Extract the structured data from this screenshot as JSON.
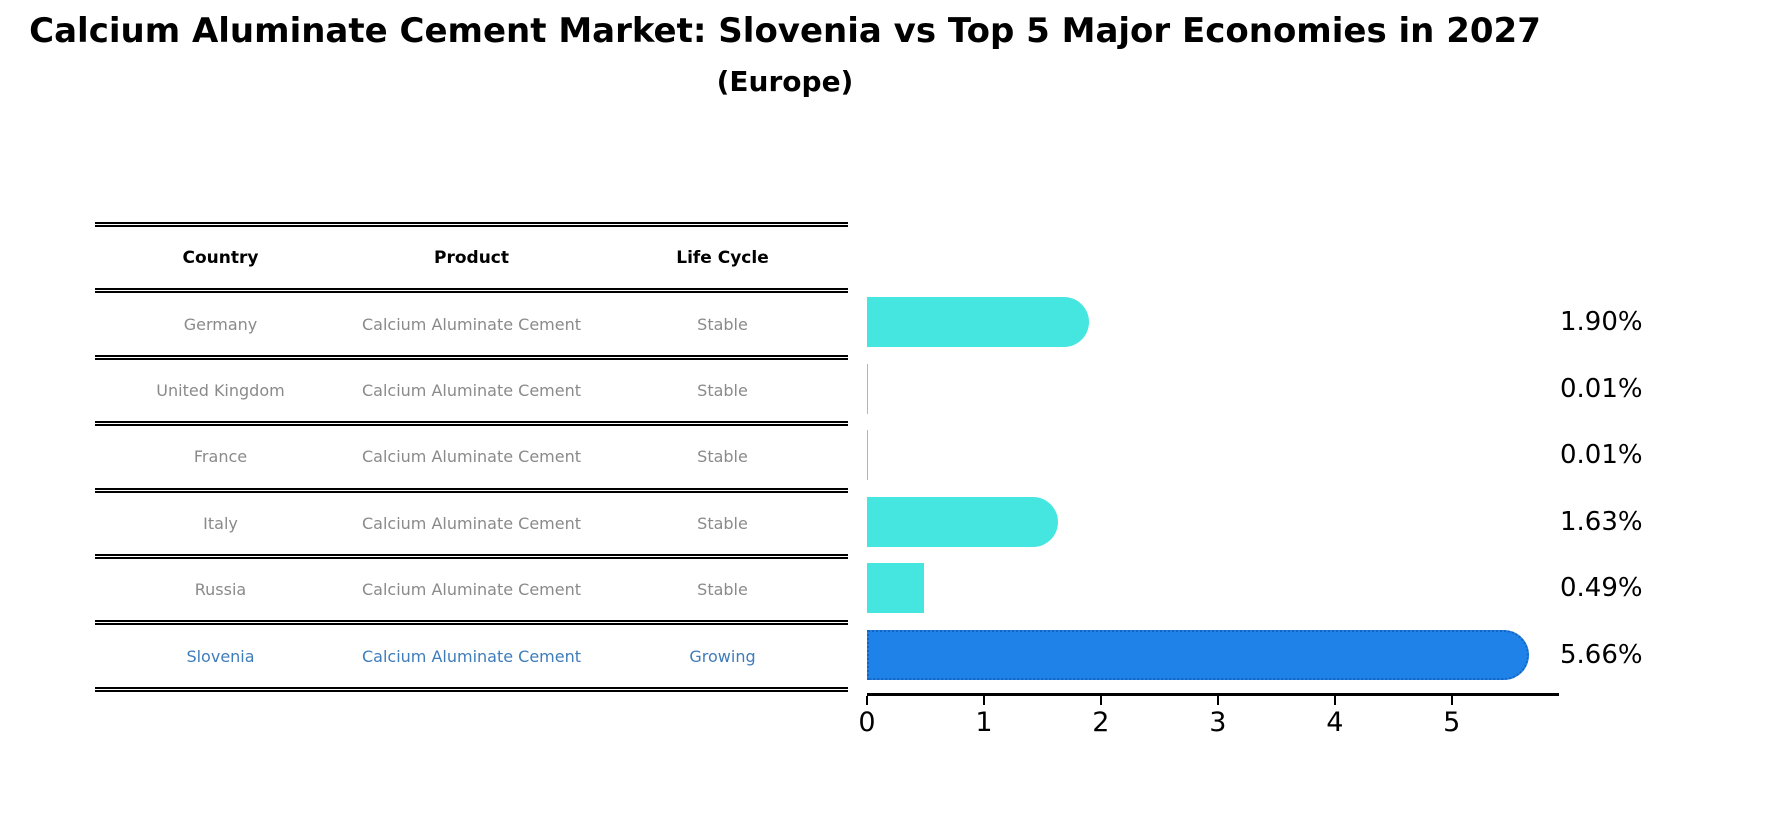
{
  "header": {
    "title": "Calcium Aluminate Cement Market: Slovenia vs Top 5 Major Economies in 2027",
    "subtitle": "(Europe)"
  },
  "table": {
    "columns": [
      "Country",
      "Product",
      "Life Cycle"
    ],
    "rows": [
      {
        "country": "Germany",
        "product": "Calcium Aluminate Cement",
        "life_cycle": "Stable",
        "highlighted": false
      },
      {
        "country": "United Kingdom",
        "product": "Calcium Aluminate Cement",
        "life_cycle": "Stable",
        "highlighted": false
      },
      {
        "country": "France",
        "product": "Calcium Aluminate Cement",
        "life_cycle": "Stable",
        "highlighted": false
      },
      {
        "country": "Italy",
        "product": "Calcium Aluminate Cement",
        "life_cycle": "Stable",
        "highlighted": false
      },
      {
        "country": "Russia",
        "product": "Calcium Aluminate Cement",
        "life_cycle": "Stable",
        "highlighted": false
      },
      {
        "country": "Slovenia",
        "product": "Calcium Aluminate Cement",
        "life_cycle": "Growing",
        "highlighted": true
      }
    ]
  },
  "chart_data": {
    "type": "bar",
    "orientation": "horizontal",
    "title": "Calcium Aluminate Cement Market: Slovenia vs Top 5 Major Economies in 2027",
    "subtitle": "(Europe)",
    "categories": [
      "Germany",
      "United Kingdom",
      "France",
      "Italy",
      "Russia",
      "Slovenia"
    ],
    "values": [
      1.9,
      0.01,
      0.01,
      1.63,
      0.49,
      5.66
    ],
    "value_labels": [
      "1.90%",
      "0.01%",
      "0.01%",
      "1.63%",
      "0.49%",
      "5.66%"
    ],
    "xlim": [
      0,
      5.9
    ],
    "xticks": [
      0,
      1,
      2,
      3,
      4,
      5
    ],
    "grid": false,
    "legend": false,
    "bar_color_default": "#45e6df",
    "bar_color_highlight": "#1f82e8",
    "highlight_border_color": "#1565c0",
    "highlight_index": 5
  },
  "colors": {
    "background": "#ffffff",
    "title_text": "#000000",
    "table_line": "#000000",
    "table_header_text": "#000000",
    "table_row_text": "#8a8a8a",
    "table_highlight_text": "#3f7cba",
    "axis": "#000000",
    "value_label_text": "#000000"
  }
}
